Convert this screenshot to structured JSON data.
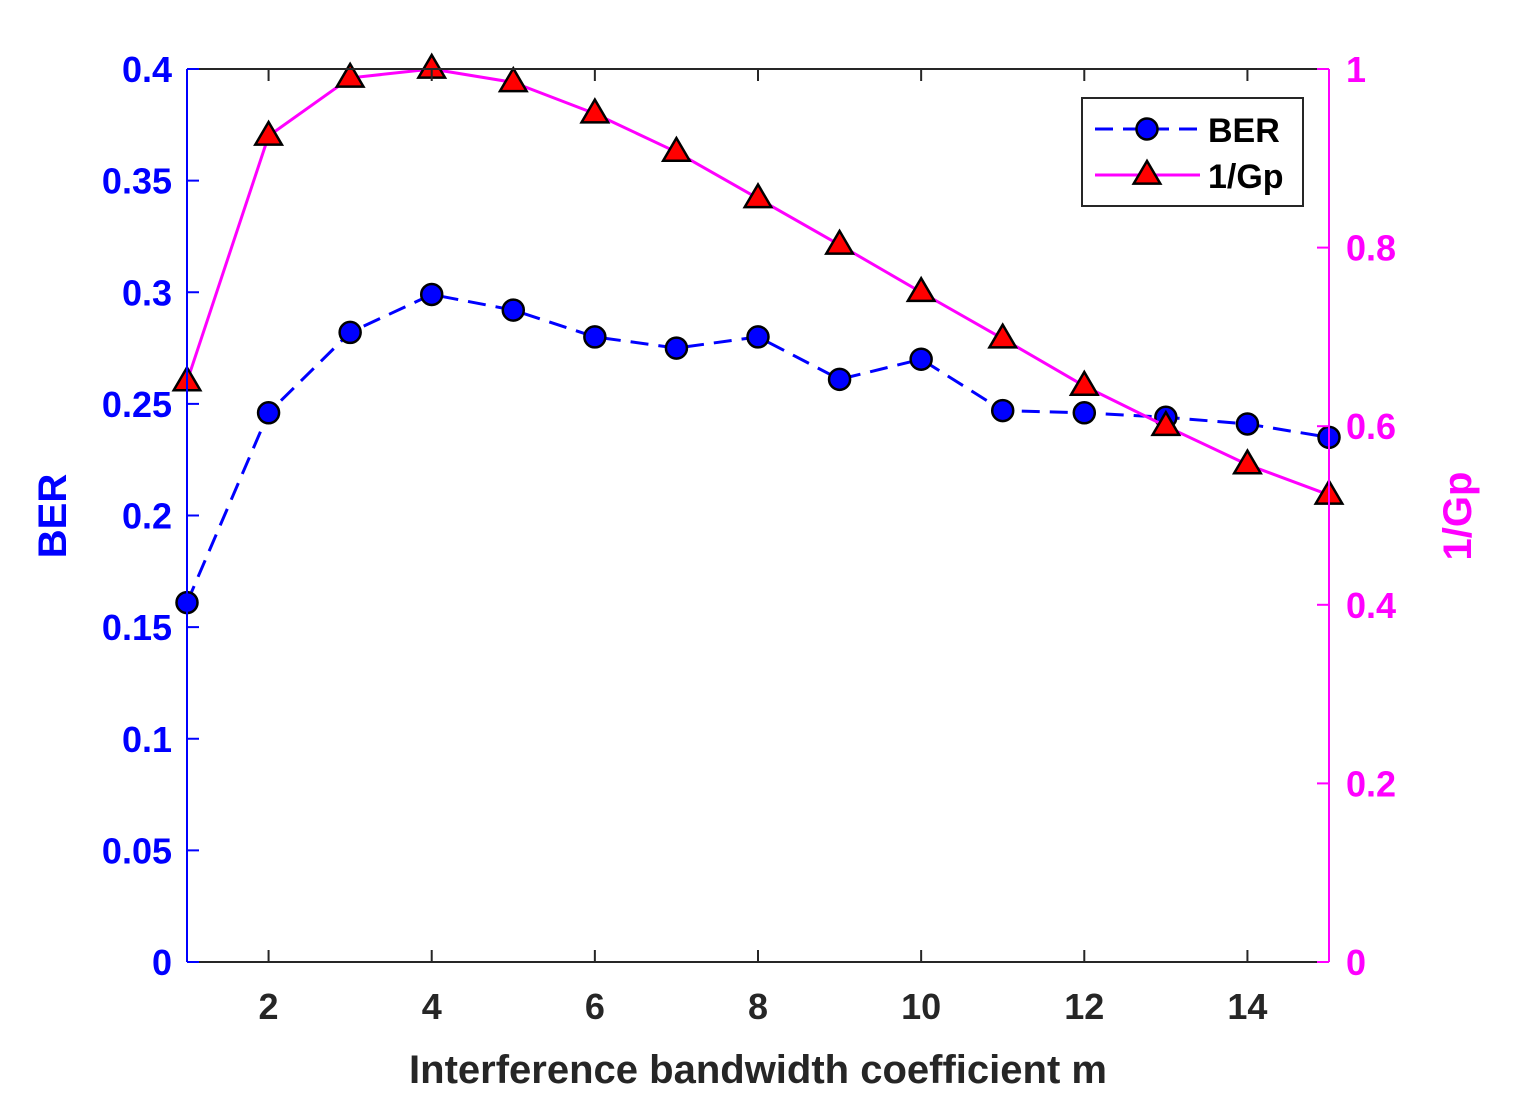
{
  "chart_data": {
    "type": "line",
    "title": "",
    "xlabel": "Interference bandwidth coefficient m",
    "ylabel_left": "BER",
    "ylabel_right": "1/Gp",
    "xlim": [
      1,
      15
    ],
    "ylim_left": [
      0,
      0.4
    ],
    "ylim_right": [
      0,
      1
    ],
    "x": [
      1,
      2,
      3,
      4,
      5,
      6,
      7,
      8,
      9,
      10,
      11,
      12,
      13,
      14,
      15
    ],
    "x_ticks": [
      2,
      4,
      6,
      8,
      10,
      12,
      14
    ],
    "x_tick_labels": [
      "2",
      "4",
      "6",
      "8",
      "10",
      "12",
      "14"
    ],
    "left_ticks": [
      0,
      0.05,
      0.1,
      0.15,
      0.2,
      0.25,
      0.3,
      0.35,
      0.4
    ],
    "left_tick_labels": [
      "0",
      "0.05",
      "0.1",
      "0.15",
      "0.2",
      "0.25",
      "0.3",
      "0.35",
      "0.4"
    ],
    "right_ticks": [
      0,
      0.2,
      0.4,
      0.6,
      0.8,
      1
    ],
    "right_tick_labels": [
      "0",
      "0.2",
      "0.4",
      "0.6",
      "0.8",
      "1"
    ],
    "grid": false,
    "legend_position": "top-right",
    "series": [
      {
        "name": "BER",
        "axis": "left",
        "line_style": "dashed",
        "marker": "circle",
        "color": "#0000ff",
        "marker_color": "#0000ff",
        "values": [
          0.161,
          0.246,
          0.282,
          0.299,
          0.292,
          0.28,
          0.275,
          0.28,
          0.261,
          0.27,
          0.247,
          0.246,
          0.244,
          0.241,
          0.235
        ]
      },
      {
        "name": "1/Gp",
        "axis": "right",
        "line_style": "solid",
        "marker": "triangle",
        "color": "#ff00ff",
        "marker_color": "#ff0000",
        "values": [
          0.65,
          0.925,
          0.99,
          1.0,
          0.985,
          0.95,
          0.907,
          0.855,
          0.803,
          0.75,
          0.698,
          0.645,
          0.6,
          0.557,
          0.523
        ]
      }
    ]
  },
  "colors": {
    "left_axis": "#0000ff",
    "right_axis": "#ff00ff",
    "bottom_axis": "#262626",
    "marker_edge": "#000000"
  }
}
